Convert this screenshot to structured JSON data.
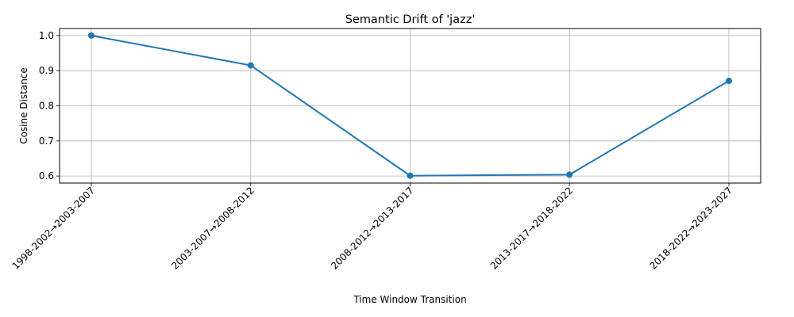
{
  "chart_data": {
    "type": "line",
    "title": "Semantic Drift of 'jazz'",
    "xlabel": "Time Window Transition",
    "ylabel": "Cosine Distance",
    "categories": [
      "1998-2002→2003-2007",
      "2003-2007→2008-2012",
      "2008-2012→2013-2017",
      "2013-2017→2018-2022",
      "2018-2022→2023-2027"
    ],
    "series": [
      {
        "values": [
          1.0,
          0.915,
          0.601,
          0.604,
          0.871
        ]
      }
    ],
    "ylim": [
      0.58,
      1.02
    ],
    "yticks": [
      0.6,
      0.7,
      0.8,
      0.9,
      1.0
    ],
    "ytick_labels": [
      "0.6",
      "0.7",
      "0.8",
      "0.9",
      "1.0"
    ],
    "grid": true,
    "legend": "none",
    "line_color": "#1f77b4"
  }
}
